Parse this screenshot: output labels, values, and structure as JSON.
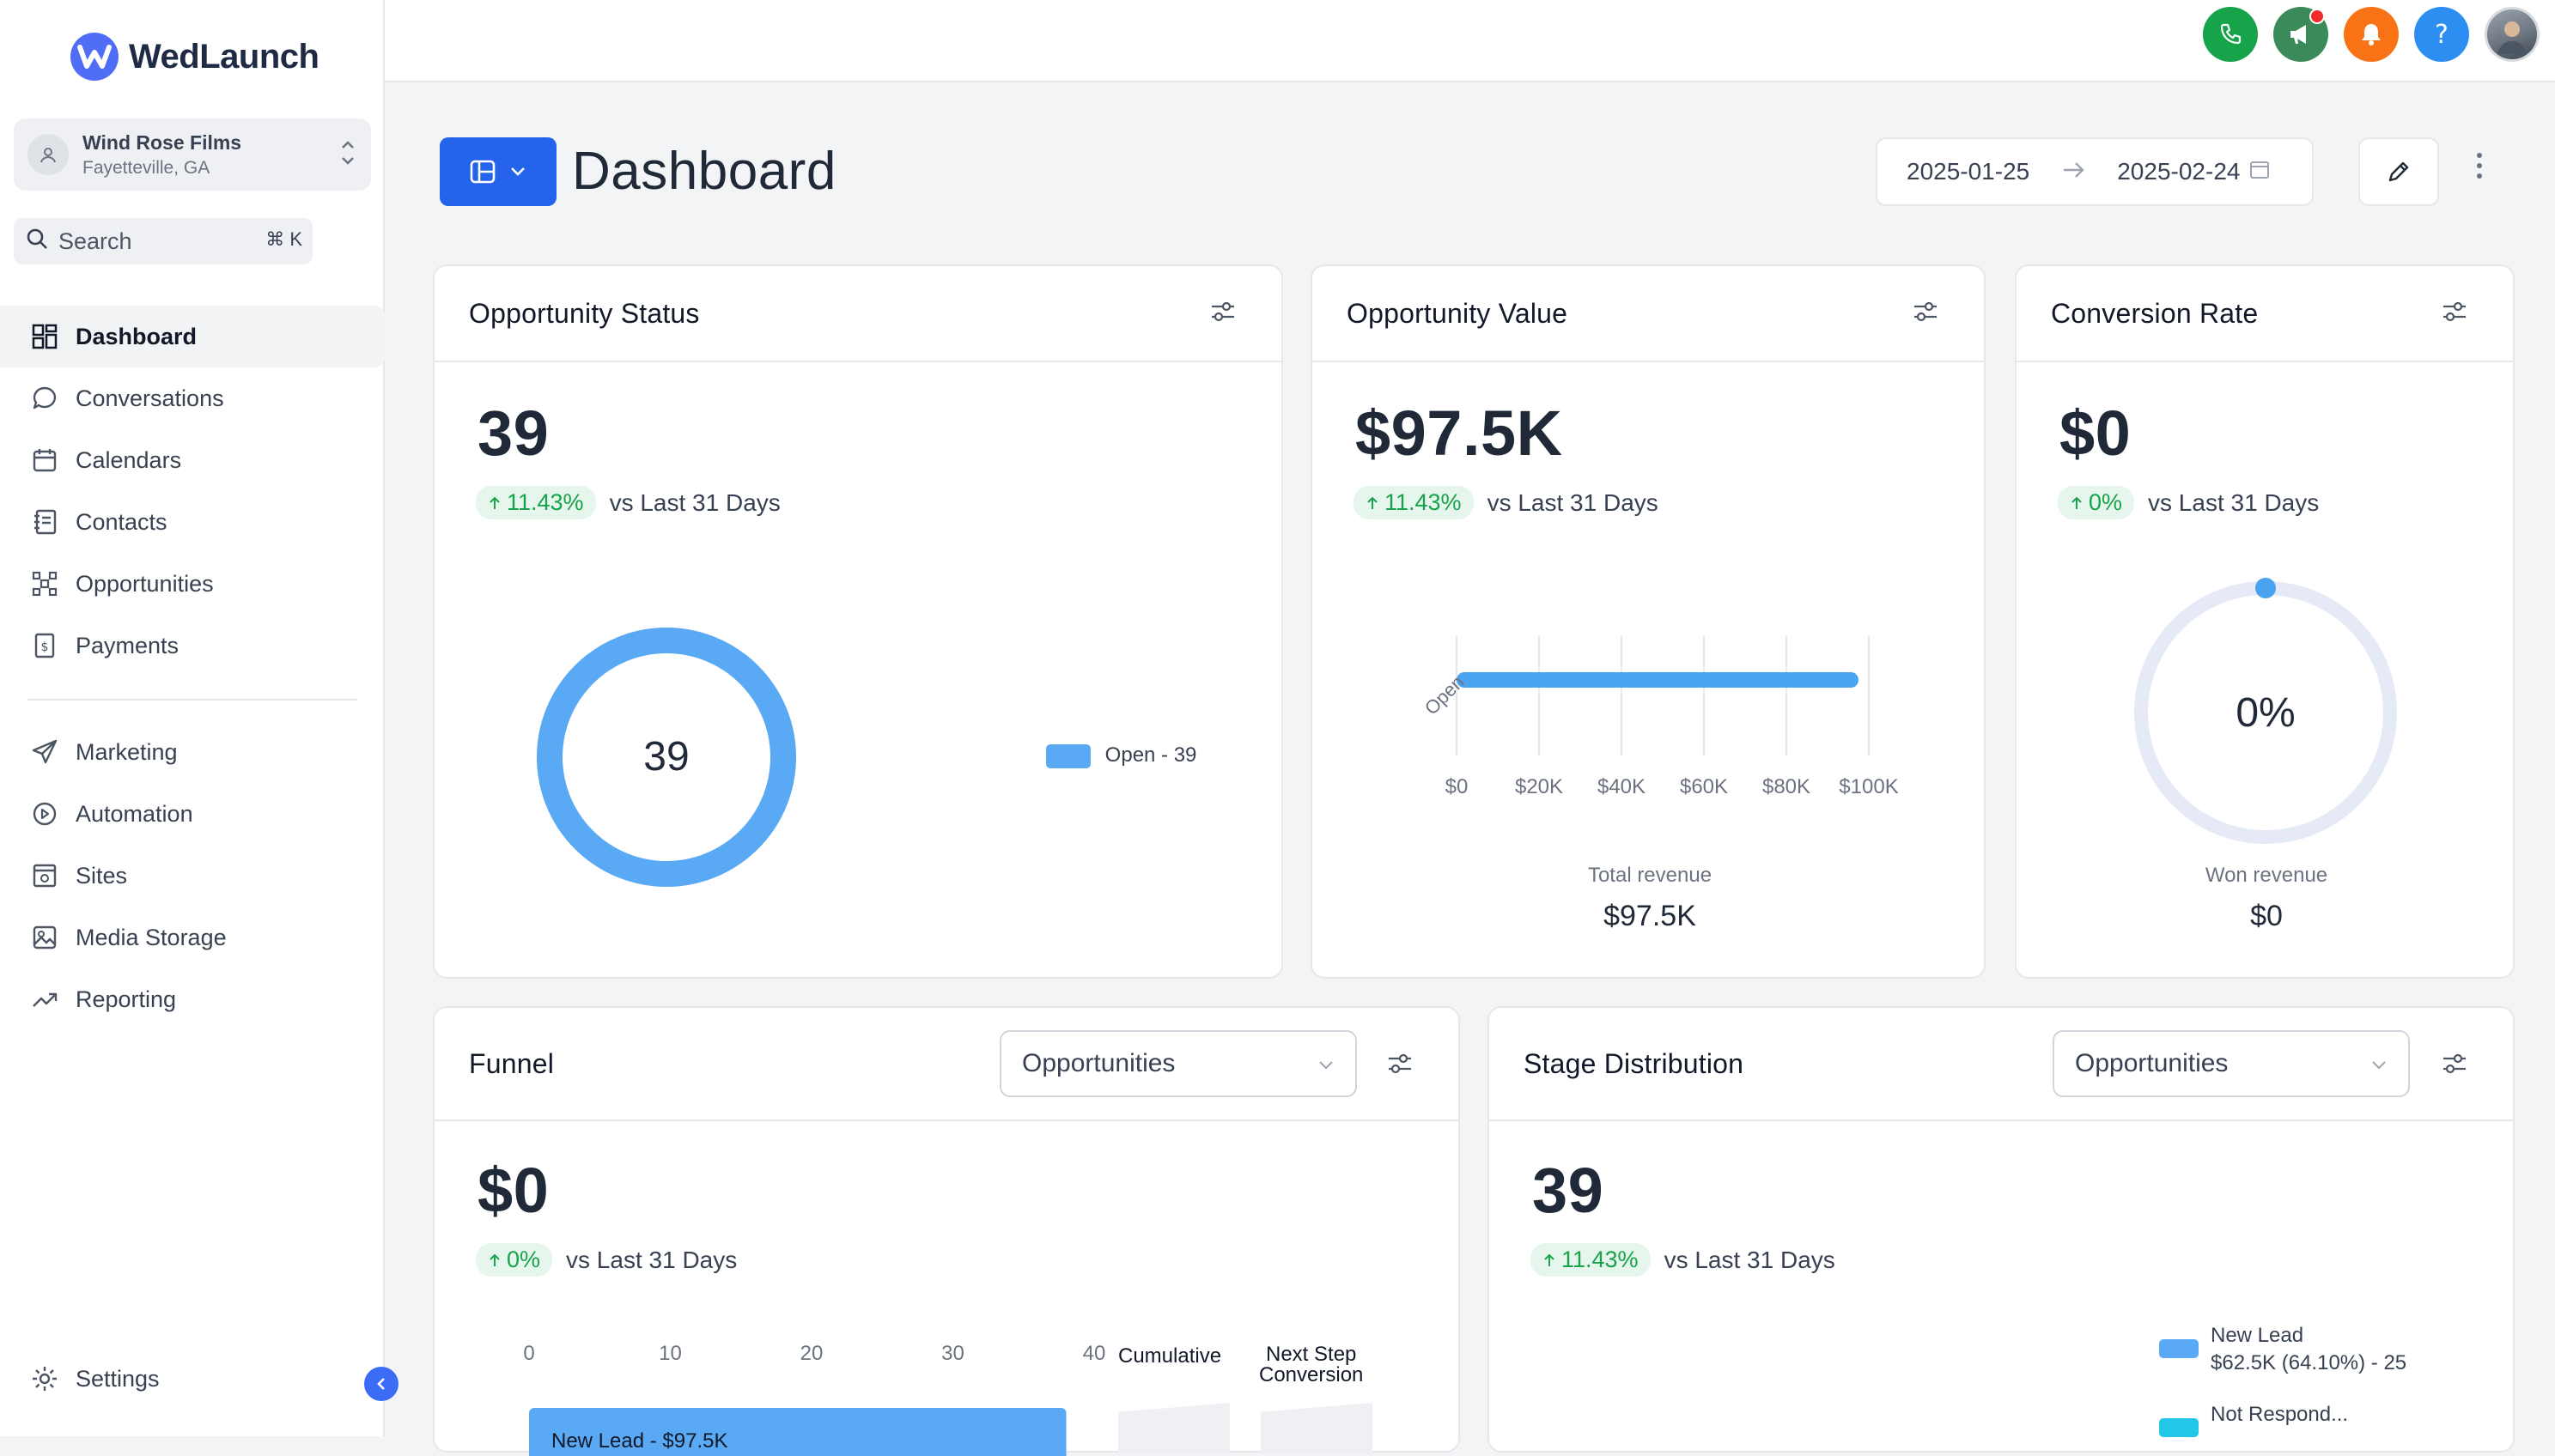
{
  "app": {
    "name": "WedLaunch"
  },
  "account": {
    "name": "Wind Rose Films",
    "location": "Fayetteville, GA"
  },
  "search": {
    "label": "Search",
    "shortcut": "⌘ K"
  },
  "nav": {
    "primary": [
      {
        "label": "Dashboard",
        "icon": "grid-icon",
        "active": true
      },
      {
        "label": "Conversations",
        "icon": "chat-icon"
      },
      {
        "label": "Calendars",
        "icon": "calendar-icon"
      },
      {
        "label": "Contacts",
        "icon": "contacts-icon"
      },
      {
        "label": "Opportunities",
        "icon": "opportunities-icon"
      },
      {
        "label": "Payments",
        "icon": "payments-icon"
      }
    ],
    "secondary": [
      {
        "label": "Marketing",
        "icon": "send-icon"
      },
      {
        "label": "Automation",
        "icon": "automation-icon"
      },
      {
        "label": "Sites",
        "icon": "sites-icon"
      },
      {
        "label": "Media Storage",
        "icon": "image-icon"
      },
      {
        "label": "Reporting",
        "icon": "trend-icon"
      }
    ],
    "settings": "Settings"
  },
  "topbar": {
    "icons": [
      {
        "name": "phone-icon",
        "color": "#16a34a"
      },
      {
        "name": "megaphone-icon",
        "color": "#3b8a5a",
        "notification": true
      },
      {
        "name": "bell-icon",
        "color": "#f97316"
      },
      {
        "name": "help-icon",
        "color": "#2b8ef0",
        "glyph": "?"
      },
      {
        "name": "user-avatar"
      }
    ]
  },
  "header": {
    "title": "Dashboard",
    "date_start": "2025-01-25",
    "date_end": "2025-02-24"
  },
  "cards": {
    "opportunity_status": {
      "title": "Opportunity Status",
      "value": "39",
      "delta": "11.43%",
      "compare": "vs Last 31 Days",
      "donut_center": "39",
      "legend": "Open - 39"
    },
    "opportunity_value": {
      "title": "Opportunity Value",
      "value": "$97.5K",
      "delta": "11.43%",
      "compare": "vs Last 31 Days",
      "footer_label": "Total revenue",
      "footer_value": "$97.5K"
    },
    "conversion_rate": {
      "title": "Conversion Rate",
      "value": "$0",
      "delta": "0%",
      "compare": "vs Last 31 Days",
      "gauge_label": "0%",
      "footer_label": "Won revenue",
      "footer_value": "$0"
    },
    "funnel": {
      "title": "Funnel",
      "select": "Opportunities",
      "value": "$0",
      "delta": "0%",
      "compare": "vs Last 31 Days",
      "col_cumulative": "Cumulative",
      "col_next_1": "Next Step",
      "col_next_2": "Conversion",
      "bar_label": "New Lead - $97.5K"
    },
    "stage_distribution": {
      "title": "Stage Distribution",
      "select": "Opportunities",
      "value": "39",
      "delta": "11.43%",
      "compare": "vs Last 31 Days",
      "legend": [
        {
          "label": "New Lead",
          "detail": "$62.5K (64.10%) - 25",
          "color": "#5aa9f5"
        },
        {
          "label": "Not Respond...",
          "detail": "",
          "color": "#22c6e6"
        }
      ]
    }
  },
  "chart_data": [
    {
      "type": "pie",
      "title": "Opportunity Status",
      "categories": [
        "Open"
      ],
      "values": [
        39
      ],
      "colors": [
        "#5aa9f5"
      ],
      "legend_position": "right"
    },
    {
      "type": "bar",
      "orientation": "horizontal",
      "title": "Opportunity Value",
      "categories": [
        "Open"
      ],
      "values": [
        97500
      ],
      "xlim": [
        0,
        100000
      ],
      "xticks": [
        "$0",
        "$20K",
        "$40K",
        "$60K",
        "$80K",
        "$100K"
      ],
      "xtick_values": [
        0,
        20000,
        40000,
        60000,
        80000,
        100000
      ],
      "grid": true
    },
    {
      "type": "bar",
      "orientation": "horizontal",
      "title": "Funnel",
      "categories": [
        "New Lead"
      ],
      "values": [
        39
      ],
      "xlim": [
        0,
        40
      ],
      "xticks": [
        "0",
        "10",
        "20",
        "30",
        "40"
      ],
      "xtick_values": [
        0,
        10,
        20,
        30,
        40
      ]
    }
  ]
}
